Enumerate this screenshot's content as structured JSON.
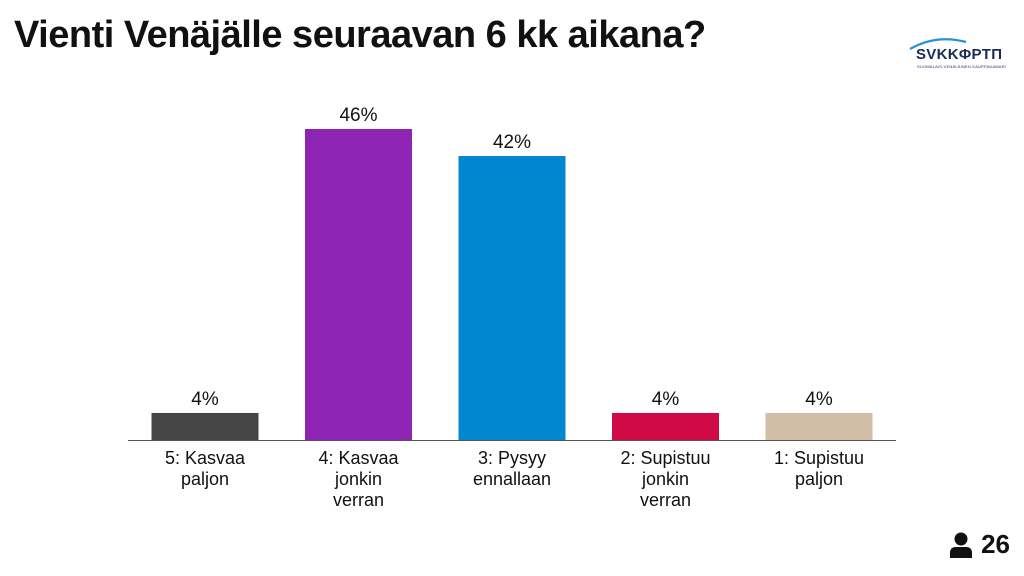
{
  "title": "Vienti Venäjälle seuraavan 6 kk aikana?",
  "logo": {
    "wordmark": "SVKKΦPTП",
    "subtitle": "SUOMALAIS-VENÄLÄINEN KAUPPAKAMARI"
  },
  "respondents": {
    "icon": "person-icon",
    "count": "26"
  },
  "colors": {
    "bars": [
      "#454545",
      "#8e24b4",
      "#0087d0",
      "#cf0a47",
      "#d2bea6"
    ],
    "axis": "#555555"
  },
  "chart_data": {
    "type": "bar",
    "categories": [
      "5: Kasvaa paljon",
      "4: Kasvaa jonkin verran",
      "3: Pysyy ennallaan",
      "2: Supistuu jonkin verran",
      "1: Supistuu paljon"
    ],
    "category_lines": [
      [
        "5: Kasvaa",
        "paljon"
      ],
      [
        "4: Kasvaa",
        "jonkin",
        "verran"
      ],
      [
        "3: Pysyy",
        "ennallaan"
      ],
      [
        "2: Supistuu",
        "jonkin",
        "verran"
      ],
      [
        "1: Supistuu",
        "paljon"
      ]
    ],
    "values": [
      4,
      46,
      42,
      4,
      4
    ],
    "value_labels": [
      "4%",
      "46%",
      "42%",
      "4%",
      "4%"
    ],
    "ylim": [
      0,
      50
    ],
    "grid": false
  }
}
